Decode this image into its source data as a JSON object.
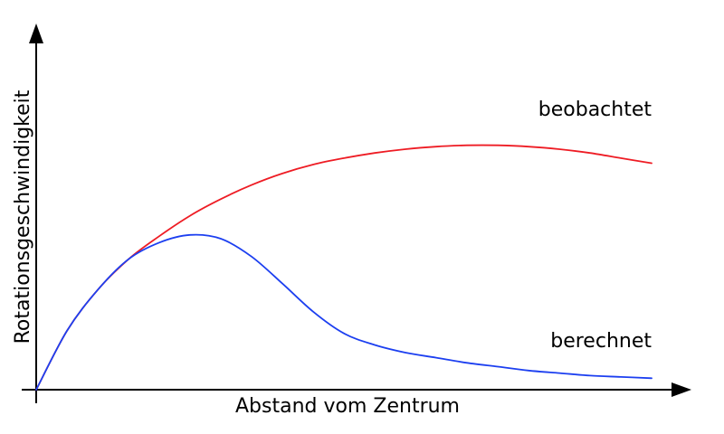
{
  "chart_data": {
    "type": "line",
    "title": "",
    "xlabel": "Abstand vom Zentrum",
    "ylabel": "Rotationsgeschwindigkeit",
    "xlim": [
      0,
      100
    ],
    "ylim": [
      0,
      100
    ],
    "grid": false,
    "legend": "none",
    "series": [
      {
        "name": "beobachtet",
        "color": "#ee1c24",
        "x": [
          0,
          5,
          10,
          15,
          20,
          25,
          30,
          35,
          40,
          45,
          50,
          55,
          60,
          65,
          70,
          75,
          80,
          85,
          90,
          95,
          100
        ],
        "y": [
          0,
          23,
          39,
          51,
          60,
          68,
          74.5,
          80,
          84.5,
          88,
          90.5,
          92.5,
          94,
          95,
          95.5,
          95.5,
          95,
          94,
          92.5,
          90.5,
          88.5
        ]
      },
      {
        "name": "berechnet",
        "color": "#1c3ff0",
        "x": [
          0,
          5,
          10,
          15,
          20,
          25,
          30,
          35,
          40,
          45,
          50,
          55,
          60,
          65,
          70,
          75,
          80,
          85,
          90,
          95,
          100
        ],
        "y": [
          0,
          23,
          39,
          51,
          57.5,
          60.5,
          59,
          52,
          41.5,
          30.5,
          22,
          17.5,
          14.5,
          12.5,
          10.5,
          9,
          7.5,
          6.5,
          5.5,
          5,
          4.5
        ]
      }
    ]
  }
}
